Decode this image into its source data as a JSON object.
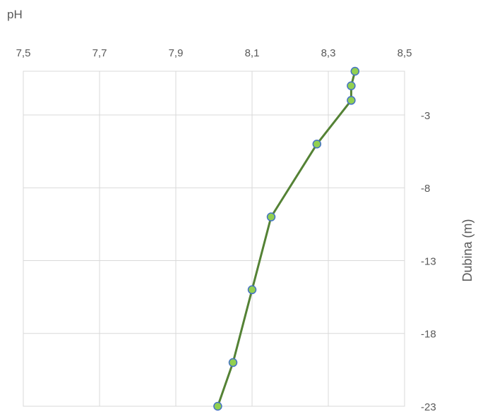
{
  "chart_data": {
    "type": "line",
    "title": "pH",
    "xlabel": "",
    "ylabel": "Dubina (m)",
    "x_ticks": [
      "7,5",
      "7,7",
      "7,9",
      "8,1",
      "8,3",
      "8,5"
    ],
    "y_ticks": [
      "-3",
      "-8",
      "-13",
      "-18",
      "-23"
    ],
    "xlim": [
      7.5,
      8.5
    ],
    "ylim": [
      -23,
      0
    ],
    "x_axis_position": "top",
    "y_axis_position": "right",
    "grid": true,
    "series": [
      {
        "x": [
          8.37,
          8.36,
          8.36,
          8.27,
          8.15,
          8.1,
          8.05,
          8.01
        ],
        "y": [
          0,
          -1,
          -2,
          -5,
          -10,
          -15,
          -20,
          -23
        ]
      }
    ],
    "colors": {
      "line": "#548235",
      "marker_fill": "#92D050",
      "marker_edge": "#4472C4",
      "grid": "#d9d9d9"
    }
  }
}
